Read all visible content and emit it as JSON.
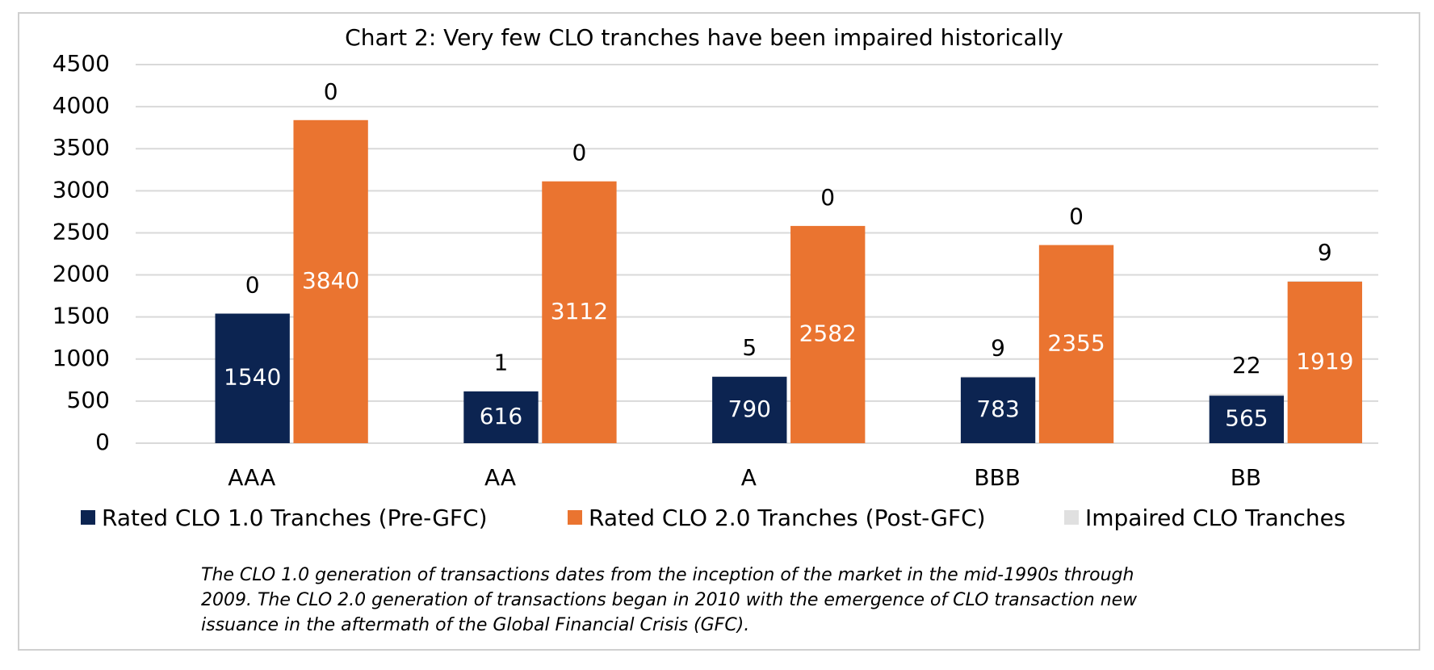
{
  "chart_data": {
    "type": "bar",
    "title": "Chart 2: Very few CLO tranches have been impaired historically",
    "categories": [
      "AAA",
      "AA",
      "A",
      "BBB",
      "BB"
    ],
    "series": [
      {
        "name": "Rated CLO 1.0 Tranches (Pre-GFC)",
        "color": "#0c2451",
        "values": [
          1540,
          616,
          790,
          783,
          565
        ],
        "impaired": [
          0,
          1,
          5,
          9,
          22
        ]
      },
      {
        "name": "Rated CLO 2.0 Tranches (Post-GFC)",
        "color": "#ea7430",
        "values": [
          3840,
          3112,
          2582,
          2355,
          1919
        ],
        "impaired": [
          0,
          0,
          0,
          0,
          9
        ]
      }
    ],
    "impaired_series": {
      "name": "Impaired CLO Tranches",
      "color": "#e0e0e0"
    },
    "ylim": [
      0,
      4500
    ],
    "yticks": [
      0,
      500,
      1000,
      1500,
      2000,
      2500,
      3000,
      3500,
      4000,
      4500
    ],
    "grid": true,
    "caption": [
      "The CLO 1.0 generation of transactions dates from the inception of the market in the mid-1990s through",
      "2009. The CLO 2.0 generation of transactions began in 2010 with the emergence of CLO transaction new",
      "issuance in the aftermath of the Global Financial Crisis (GFC)."
    ]
  }
}
